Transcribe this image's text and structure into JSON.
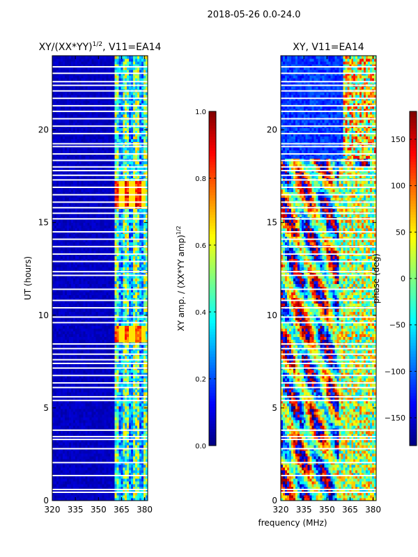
{
  "suptitle": "2018-05-26 0.0-24.0",
  "colors": {
    "background": "#ffffff",
    "no_data": "#ffffff",
    "axis": "#000000"
  },
  "chart_data": [
    {
      "type": "heatmap",
      "title_main": "XY/(XX*YY)",
      "title_sup": "1/2",
      "title_tail": ", V11=EA14",
      "xlabel": "",
      "ylabel": "UT (hours)",
      "xlim": [
        320,
        382
      ],
      "ylim": [
        0,
        24
      ],
      "xticks": [
        320,
        335,
        350,
        365,
        380
      ],
      "yticks": [
        0,
        5,
        10,
        15,
        20
      ],
      "colorbar": {
        "label_main": "XY amp. / (XX*YY amp)",
        "label_sup": "1/2",
        "range": [
          0.0,
          1.0
        ],
        "ticks": [
          "0.0",
          "0.2",
          "0.4",
          "0.6",
          "0.8",
          "1.0"
        ],
        "colormap": "jet"
      },
      "description_values": {
        "background_level": 0.05,
        "active_band_mhz": [
          360,
          382
        ],
        "high_amplitude_patches": [
          {
            "ut": [
              15.8,
              17.2
            ],
            "freq": [
              360,
              380
            ],
            "value": 0.85
          },
          {
            "ut": [
              8.5,
              9.4
            ],
            "freq": [
              360,
              380
            ],
            "value": 0.8
          }
        ]
      }
    },
    {
      "type": "heatmap",
      "title": "XY, V11=EA14",
      "xlabel": "frequency (MHz)",
      "ylabel": "",
      "xlim": [
        320,
        382
      ],
      "ylim": [
        0,
        24
      ],
      "xticks": [
        320,
        335,
        350,
        365,
        380
      ],
      "yticks": [
        0,
        5,
        10,
        15,
        20
      ],
      "colorbar": {
        "label": "phase (deg)",
        "range": [
          -180,
          180
        ],
        "ticks": [
          "−150",
          "−100",
          "−50",
          "0",
          "50",
          "100",
          "150"
        ],
        "tick_values": [
          -150,
          -100,
          -50,
          0,
          50,
          100,
          150
        ],
        "colormap": "jet"
      }
    }
  ]
}
